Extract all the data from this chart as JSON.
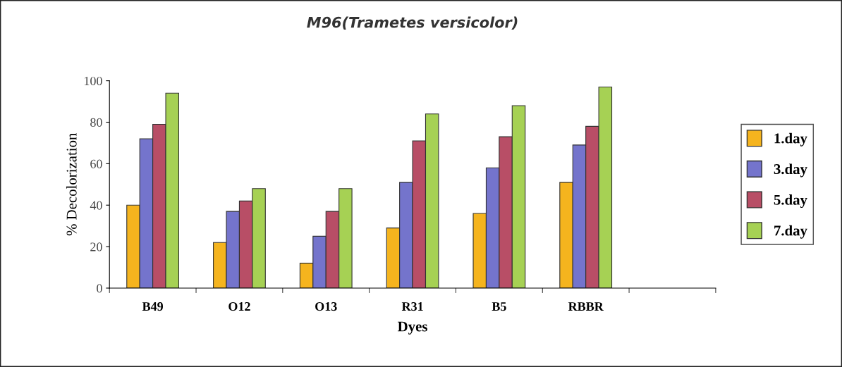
{
  "chart_data": {
    "type": "bar",
    "title": "M96(Trametes versicolor)",
    "xlabel": "Dyes",
    "ylabel": "% Decolorization",
    "categories": [
      "B49",
      "O12",
      "O13",
      "R31",
      "B5",
      "RBBR",
      null
    ],
    "series": [
      {
        "name": "1.day",
        "color": "#f5b41e",
        "values": [
          40,
          22,
          12,
          29,
          36,
          51,
          null
        ]
      },
      {
        "name": "3.day",
        "color": "#7474cc",
        "values": [
          72,
          37,
          25,
          51,
          58,
          69,
          null
        ]
      },
      {
        "name": "5.day",
        "color": "#b84e66",
        "values": [
          79,
          42,
          37,
          71,
          73,
          78,
          null
        ]
      },
      {
        "name": "7.day",
        "color": "#a6d154",
        "values": [
          94,
          48,
          48,
          84,
          88,
          97,
          null
        ]
      }
    ],
    "ylim": [
      0,
      100
    ],
    "yticks": [
      0,
      20,
      40,
      60,
      80,
      100
    ],
    "grid": false,
    "legend": "right"
  }
}
